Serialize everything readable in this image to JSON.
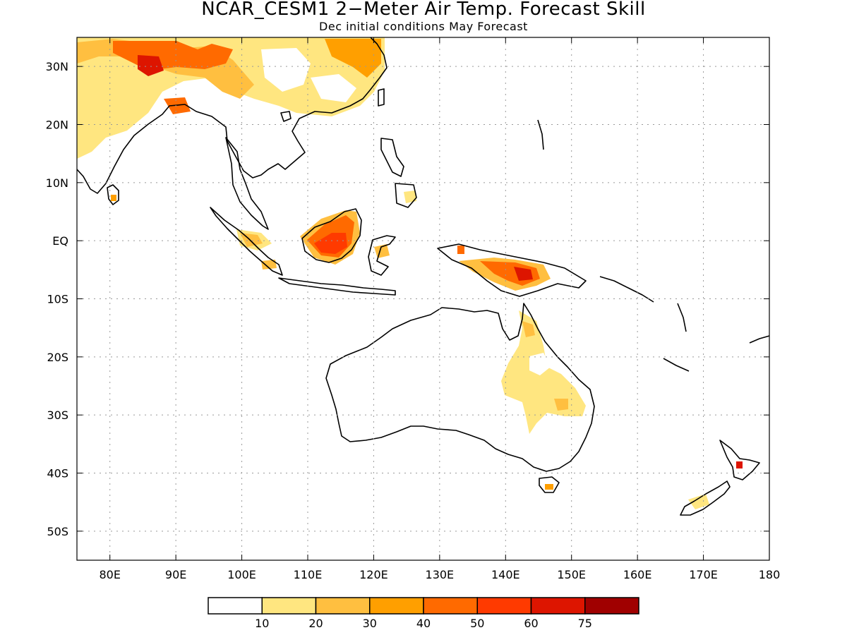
{
  "title": "NCAR_CESM1 2−Meter Air Temp. Forecast Skill",
  "subtitle": "Dec initial conditions  May Forecast",
  "map": {
    "lon_range": [
      75,
      180
    ],
    "lat_range": [
      -55,
      35
    ],
    "x_ticks": [
      {
        "lon": 80,
        "label": "80E"
      },
      {
        "lon": 90,
        "label": "90E"
      },
      {
        "lon": 100,
        "label": "100E"
      },
      {
        "lon": 110,
        "label": "110E"
      },
      {
        "lon": 120,
        "label": "120E"
      },
      {
        "lon": 130,
        "label": "130E"
      },
      {
        "lon": 140,
        "label": "140E"
      },
      {
        "lon": 150,
        "label": "150E"
      },
      {
        "lon": 160,
        "label": "160E"
      },
      {
        "lon": 170,
        "label": "170E"
      },
      {
        "lon": 180,
        "label": "180"
      }
    ],
    "y_ticks": [
      {
        "lat": 30,
        "label": "30N"
      },
      {
        "lat": 20,
        "label": "20N"
      },
      {
        "lat": 10,
        "label": "10N"
      },
      {
        "lat": 0,
        "label": "EQ"
      },
      {
        "lat": -10,
        "label": "10S"
      },
      {
        "lat": -20,
        "label": "20S"
      },
      {
        "lat": -30,
        "label": "30S"
      },
      {
        "lat": -40,
        "label": "40S"
      },
      {
        "lat": -50,
        "label": "50S"
      }
    ],
    "grid": "dotted"
  },
  "colorbar": {
    "colors": [
      "#ffffff",
      "#ffe680",
      "#ffbf40",
      "#ff9f00",
      "#ff6a00",
      "#ff3a00",
      "#dd1500",
      "#a00000"
    ],
    "labels": [
      "10",
      "20",
      "30",
      "40",
      "50",
      "60",
      "75"
    ]
  }
}
